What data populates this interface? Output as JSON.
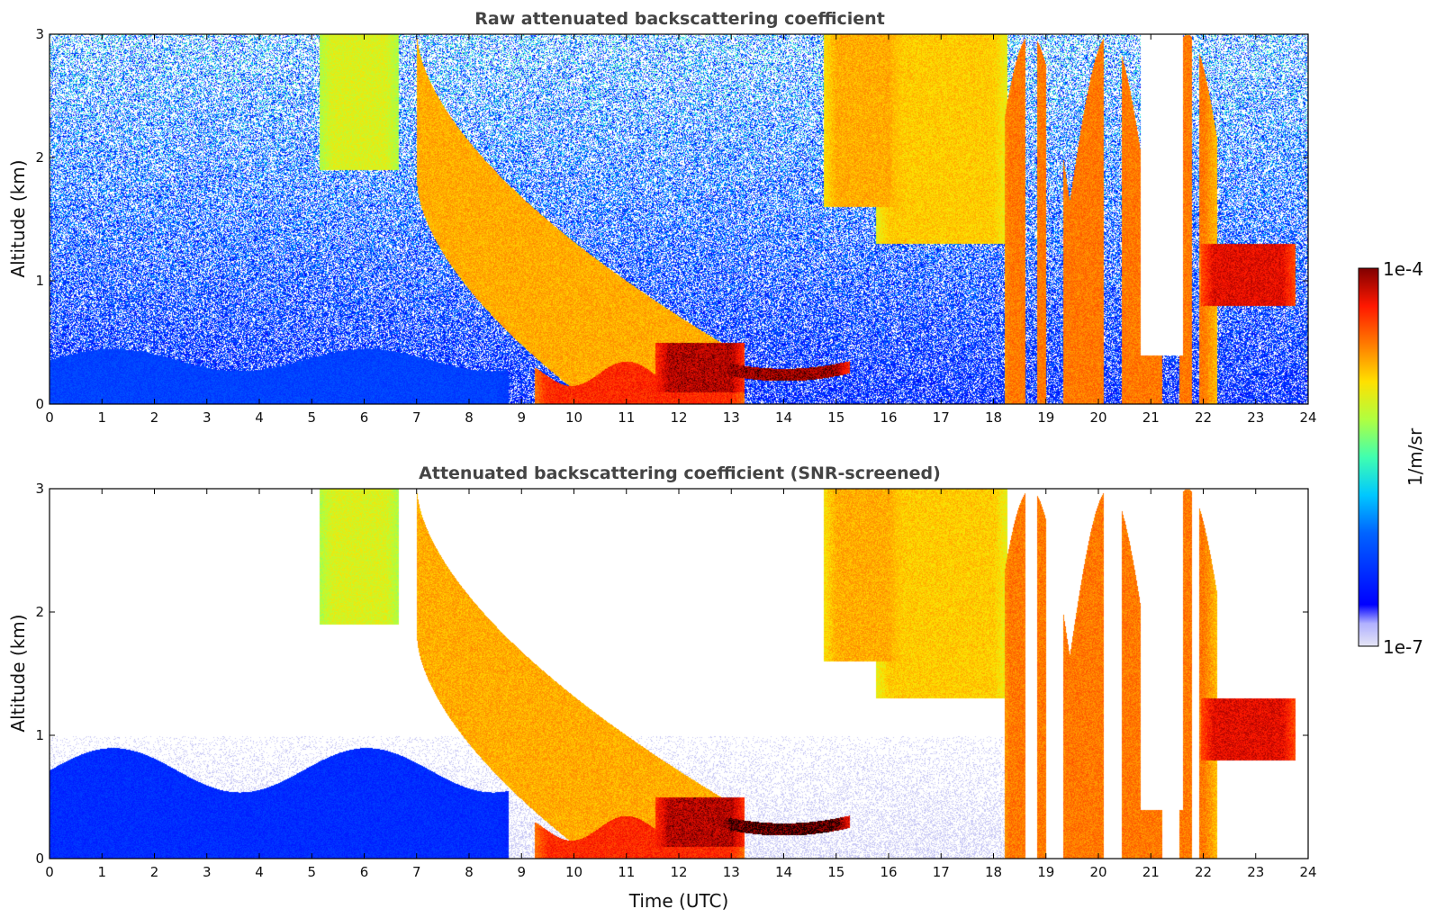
{
  "chart_data": [
    {
      "type": "heatmap",
      "title": "Raw attenuated backscattering coefficient",
      "xlabel": "",
      "ylabel": "Altitude (km)",
      "xlim": [
        0,
        24
      ],
      "ylim": [
        0,
        3
      ],
      "x_ticks": [
        "0",
        "1",
        "2",
        "3",
        "4",
        "5",
        "6",
        "7",
        "8",
        "9",
        "10",
        "11",
        "12",
        "13",
        "14",
        "15",
        "16",
        "17",
        "18",
        "19",
        "20",
        "21",
        "22",
        "23",
        "24"
      ],
      "y_ticks": [
        "0",
        "1",
        "2",
        "3"
      ],
      "background_noise": "high",
      "features": [
        {
          "type": "boundary_layer",
          "t": [
            0,
            8.5
          ],
          "top_km": 0.45,
          "level": 0.22
        },
        {
          "type": "descending_plume",
          "t": [
            7,
            13
          ],
          "top_km": [
            3.0,
            0.45
          ],
          "level": 0.75
        },
        {
          "type": "core",
          "t": [
            9.5,
            13
          ],
          "top_km": 0.25,
          "level": 0.88
        },
        {
          "type": "dark_layer",
          "t": [
            11.8,
            13
          ],
          "alt_km": [
            0.1,
            0.5
          ],
          "level": 0.95
        },
        {
          "type": "arc_layer",
          "t": [
            13,
            15
          ],
          "alt_km": [
            0.2,
            0.5
          ],
          "level": 0.96
        },
        {
          "type": "plume",
          "t": [
            5.4,
            6.4
          ],
          "alt_km": [
            1.9,
            3.0
          ],
          "level": 0.65
        },
        {
          "type": "plume",
          "t": [
            15,
            16
          ],
          "alt_km": [
            1.6,
            3.0
          ],
          "level": 0.75
        },
        {
          "type": "plume",
          "t": [
            16,
            18
          ],
          "alt_km": [
            1.3,
            3.0
          ],
          "level": 0.72
        },
        {
          "type": "towers",
          "t": [
            18.3,
            22
          ],
          "alt_km": [
            0,
            3.0
          ],
          "level": 0.8
        },
        {
          "type": "patch",
          "t": [
            22.2,
            23.5
          ],
          "alt_km": [
            0.8,
            1.3
          ],
          "level": 0.92
        },
        {
          "type": "clear_gap",
          "t": [
            20.8,
            21.6
          ],
          "alt_km": [
            0.4,
            3.0
          ],
          "level": 0
        }
      ]
    },
    {
      "type": "heatmap",
      "title": "Attenuated backscattering coefficient (SNR-screened)",
      "xlabel": "Time (UTC)",
      "ylabel": "Altitude (km)",
      "xlim": [
        0,
        24
      ],
      "ylim": [
        0,
        3
      ],
      "x_ticks": [
        "0",
        "1",
        "2",
        "3",
        "4",
        "5",
        "6",
        "7",
        "8",
        "9",
        "10",
        "11",
        "12",
        "13",
        "14",
        "15",
        "16",
        "17",
        "18",
        "19",
        "20",
        "21",
        "22",
        "23",
        "24"
      ],
      "y_ticks": [
        "0",
        "1",
        "2",
        "3"
      ],
      "background_noise": "screened",
      "features": [
        {
          "type": "boundary_layer",
          "t": [
            0,
            8.5
          ],
          "top_km": 0.9,
          "level": 0.18
        },
        {
          "type": "descending_plume",
          "t": [
            7,
            13
          ],
          "top_km": [
            3.0,
            0.45
          ],
          "level": 0.75
        },
        {
          "type": "core",
          "t": [
            9.5,
            13
          ],
          "top_km": 0.25,
          "level": 0.88
        },
        {
          "type": "dark_layer",
          "t": [
            11.8,
            13
          ],
          "alt_km": [
            0.1,
            0.5
          ],
          "level": 0.95
        },
        {
          "type": "arc_layer",
          "t": [
            13,
            15
          ],
          "alt_km": [
            0.2,
            0.45
          ],
          "level": 0.99
        },
        {
          "type": "plume",
          "t": [
            5.4,
            6.4
          ],
          "alt_km": [
            1.9,
            3.0
          ],
          "level": 0.65
        },
        {
          "type": "plume",
          "t": [
            15,
            16
          ],
          "alt_km": [
            1.6,
            3.0
          ],
          "level": 0.75
        },
        {
          "type": "plume",
          "t": [
            16,
            18
          ],
          "alt_km": [
            1.3,
            3.0
          ],
          "level": 0.72
        },
        {
          "type": "towers",
          "t": [
            18.3,
            22
          ],
          "alt_km": [
            0,
            3.0
          ],
          "level": 0.8
        },
        {
          "type": "patch",
          "t": [
            22.2,
            23.5
          ],
          "alt_km": [
            0.8,
            1.3
          ],
          "level": 0.92
        },
        {
          "type": "clear_gap",
          "t": [
            20.8,
            21.6
          ],
          "alt_km": [
            0.4,
            3.0
          ],
          "level": 0
        }
      ]
    }
  ],
  "colorbar": {
    "label": "1/m/sr",
    "max_label": "1e-4",
    "min_label": "1e-7",
    "colormap": "jet",
    "min_color": "#e6e6f5",
    "max_color": "#800000"
  }
}
